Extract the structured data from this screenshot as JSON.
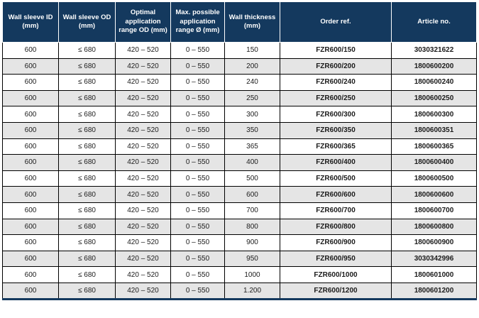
{
  "table": {
    "columns": [
      {
        "key": "wall_sleeve_id",
        "label": "Wall sleeve ID (mm)"
      },
      {
        "key": "wall_sleeve_od",
        "label": "Wall sleeve OD (mm)"
      },
      {
        "key": "optimal_range_od",
        "label": "Optimal application range OD (mm)"
      },
      {
        "key": "max_range",
        "label": "Max. possible application range Ø (mm)"
      },
      {
        "key": "wall_thickness",
        "label": "Wall thickness (mm)"
      },
      {
        "key": "order_ref",
        "label": "Order ref."
      },
      {
        "key": "article_no",
        "label": "Article no."
      }
    ],
    "bold_columns": [
      "order_ref",
      "article_no"
    ],
    "rows": [
      [
        "600",
        "≤ 680",
        "420 – 520",
        "0 – 550",
        "150",
        "FZR600/150",
        "3030321622"
      ],
      [
        "600",
        "≤ 680",
        "420 – 520",
        "0 – 550",
        "200",
        "FZR600/200",
        "1800600200"
      ],
      [
        "600",
        "≤ 680",
        "420 – 520",
        "0 – 550",
        "240",
        "FZR600/240",
        "1800600240"
      ],
      [
        "600",
        "≤ 680",
        "420 – 520",
        "0 – 550",
        "250",
        "FZR600/250",
        "1800600250"
      ],
      [
        "600",
        "≤ 680",
        "420 – 520",
        "0 – 550",
        "300",
        "FZR600/300",
        "1800600300"
      ],
      [
        "600",
        "≤ 680",
        "420 – 520",
        "0 – 550",
        "350",
        "FZR600/350",
        "1800600351"
      ],
      [
        "600",
        "≤ 680",
        "420 – 520",
        "0 – 550",
        "365",
        "FZR600/365",
        "1800600365"
      ],
      [
        "600",
        "≤ 680",
        "420 – 520",
        "0 – 550",
        "400",
        "FZR600/400",
        "1800600400"
      ],
      [
        "600",
        "≤ 680",
        "420 – 520",
        "0 – 550",
        "500",
        "FZR600/500",
        "1800600500"
      ],
      [
        "600",
        "≤ 680",
        "420 – 520",
        "0 – 550",
        "600",
        "FZR600/600",
        "1800600600"
      ],
      [
        "600",
        "≤ 680",
        "420 – 520",
        "0 – 550",
        "700",
        "FZR600/700",
        "1800600700"
      ],
      [
        "600",
        "≤ 680",
        "420 – 520",
        "0 – 550",
        "800",
        "FZR600/800",
        "1800600800"
      ],
      [
        "600",
        "≤ 680",
        "420 – 520",
        "0 – 550",
        "900",
        "FZR600/900",
        "1800600900"
      ],
      [
        "600",
        "≤ 680",
        "420 – 520",
        "0 – 550",
        "950",
        "FZR600/950",
        "3030342996"
      ],
      [
        "600",
        "≤ 680",
        "420 – 520",
        "0 – 550",
        "1000",
        "FZR600/1000",
        "1800601000"
      ],
      [
        "600",
        "≤ 680",
        "420 – 520",
        "0 – 550",
        "1.200",
        "FZR600/1200",
        "1800601200"
      ]
    ]
  },
  "colors": {
    "header_bg": "#14395E",
    "header_text": "#FFFFFF",
    "row_alt_bg": "#E5E5E5",
    "border": "#000000",
    "bottom_border": "#14395E",
    "text": "#1B1B1B"
  }
}
